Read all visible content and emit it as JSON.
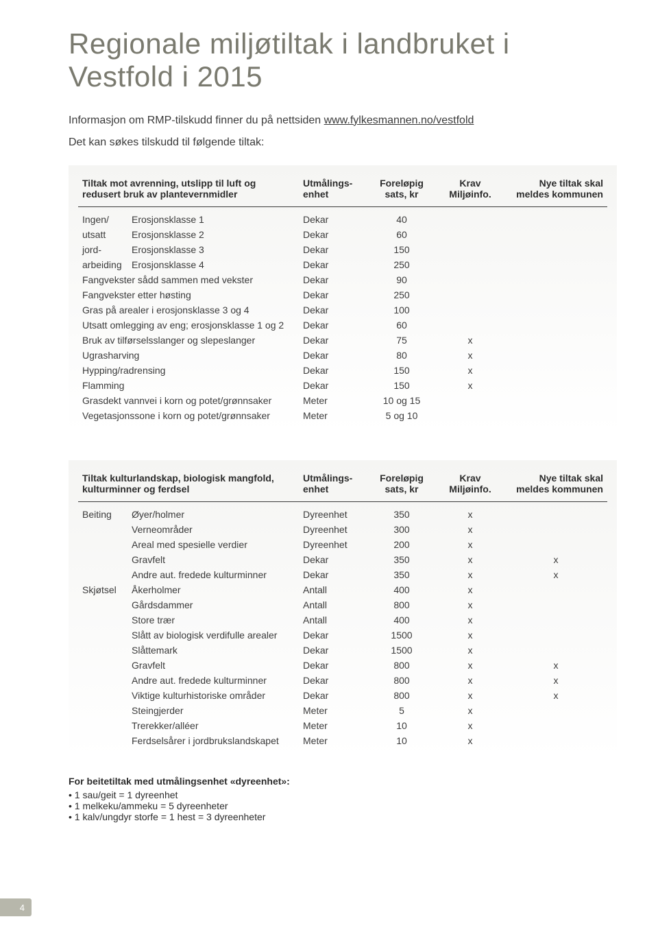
{
  "title": "Regionale miljøtiltak i landbruket i Vestfold i 2015",
  "intro_prefix": "Informasjon om RMP-tilskudd finner du på nettsiden ",
  "intro_link": "www.fylkesmannen.no/vestfold",
  "intro2": "Det kan søkes tilskudd til følgende tiltak:",
  "headers": {
    "unit": "Utmålings-\nenhet",
    "rate": "Foreløpig\nsats, kr",
    "krav": "Krav\nMiljøinfo.",
    "meld": "Nye tiltak skal\nmeldes kommunen"
  },
  "table1": {
    "heading": "Tiltak mot avrenning, utslipp til luft og redusert bruk av plantevernmidler",
    "cat_label": "Ingen/ utsatt jord- arbeiding",
    "rows": [
      {
        "cat": "Ingen/",
        "desc": "Erosjonsklasse 1",
        "unit": "Dekar",
        "rate": "40",
        "krav": "",
        "meld": ""
      },
      {
        "cat": "utsatt",
        "desc": "Erosjonsklasse 2",
        "unit": "Dekar",
        "rate": "60",
        "krav": "",
        "meld": ""
      },
      {
        "cat": "jord-",
        "desc": "Erosjonsklasse 3",
        "unit": "Dekar",
        "rate": "150",
        "krav": "",
        "meld": ""
      },
      {
        "cat": "arbeiding",
        "desc": "Erosjonsklasse 4",
        "unit": "Dekar",
        "rate": "250",
        "krav": "",
        "meld": ""
      },
      {
        "cat": "",
        "desc": "Fangvekster sådd sammen med vekster",
        "unit": "Dekar",
        "rate": "90",
        "krav": "",
        "meld": ""
      },
      {
        "cat": "",
        "desc": "Fangvekster etter høsting",
        "unit": "Dekar",
        "rate": "250",
        "krav": "",
        "meld": ""
      },
      {
        "cat": "",
        "desc": "Gras på arealer i erosjonsklasse 3 og 4",
        "unit": "Dekar",
        "rate": "100",
        "krav": "",
        "meld": ""
      },
      {
        "cat": "",
        "desc": "Utsatt omlegging av eng; erosjonsklasse 1 og 2",
        "unit": "Dekar",
        "rate": "60",
        "krav": "",
        "meld": ""
      },
      {
        "cat": "",
        "desc": "Bruk av tilførselsslanger og slepeslanger",
        "unit": "Dekar",
        "rate": "75",
        "krav": "x",
        "meld": ""
      },
      {
        "cat": "",
        "desc": "Ugrasharving",
        "unit": "Dekar",
        "rate": "80",
        "krav": "x",
        "meld": ""
      },
      {
        "cat": "",
        "desc": "Hypping/radrensing",
        "unit": "Dekar",
        "rate": "150",
        "krav": "x",
        "meld": ""
      },
      {
        "cat": "",
        "desc": "Flamming",
        "unit": "Dekar",
        "rate": "150",
        "krav": "x",
        "meld": ""
      },
      {
        "cat": "",
        "desc": "Grasdekt vannvei i korn og potet/grønnsaker",
        "unit": "Meter",
        "rate": "10 og 15",
        "krav": "",
        "meld": ""
      },
      {
        "cat": "",
        "desc": "Vegetasjonssone i korn og potet/grønnsaker",
        "unit": "Meter",
        "rate": "5 og 10",
        "krav": "",
        "meld": ""
      }
    ]
  },
  "table2": {
    "heading": "Tiltak kulturlandskap, biologisk mangfold, kulturminner og ferdsel",
    "rows": [
      {
        "cat": "Beiting",
        "desc": "Øyer/holmer",
        "unit": "Dyreenhet",
        "rate": "350",
        "krav": "x",
        "meld": ""
      },
      {
        "cat": "",
        "desc": "Verneområder",
        "unit": "Dyreenhet",
        "rate": "300",
        "krav": "x",
        "meld": ""
      },
      {
        "cat": "",
        "desc": "Areal med spesielle verdier",
        "unit": "Dyreenhet",
        "rate": "200",
        "krav": "x",
        "meld": ""
      },
      {
        "cat": "",
        "desc": "Gravfelt",
        "unit": "Dekar",
        "rate": "350",
        "krav": "x",
        "meld": "x"
      },
      {
        "cat": "",
        "desc": "Andre aut. fredede kulturminner",
        "unit": "Dekar",
        "rate": "350",
        "krav": "x",
        "meld": "x"
      },
      {
        "cat": "Skjøtsel",
        "desc": "Åkerholmer",
        "unit": "Antall",
        "rate": "400",
        "krav": "x",
        "meld": ""
      },
      {
        "cat": "",
        "desc": "Gårdsdammer",
        "unit": "Antall",
        "rate": "800",
        "krav": "x",
        "meld": ""
      },
      {
        "cat": "",
        "desc": "Store trær",
        "unit": "Antall",
        "rate": "400",
        "krav": "x",
        "meld": ""
      },
      {
        "cat": "",
        "desc": "Slått av biologisk verdifulle arealer",
        "unit": "Dekar",
        "rate": "1500",
        "krav": "x",
        "meld": ""
      },
      {
        "cat": "",
        "desc": "Slåttemark",
        "unit": "Dekar",
        "rate": "1500",
        "krav": "x",
        "meld": ""
      },
      {
        "cat": "",
        "desc": "Gravfelt",
        "unit": "Dekar",
        "rate": "800",
        "krav": "x",
        "meld": "x"
      },
      {
        "cat": "",
        "desc": "Andre aut. fredede kulturminner",
        "unit": "Dekar",
        "rate": "800",
        "krav": "x",
        "meld": "x"
      },
      {
        "cat": "",
        "desc": "Viktige kulturhistoriske områder",
        "unit": "Dekar",
        "rate": "800",
        "krav": "x",
        "meld": "x"
      },
      {
        "cat": "",
        "desc": "Steingjerder",
        "unit": "Meter",
        "rate": "5",
        "krav": "x",
        "meld": ""
      },
      {
        "cat": "",
        "desc": "Trerekker/alléer",
        "unit": "Meter",
        "rate": "10",
        "krav": "x",
        "meld": ""
      },
      {
        "cat": "",
        "desc": "Ferdselsårer i jordbrukslandskapet",
        "unit": "Meter",
        "rate": "10",
        "krav": "x",
        "meld": ""
      }
    ]
  },
  "footnotes": {
    "title": "For beitetiltak med utmålingsenhet «dyreenhet»:",
    "items": [
      "1 sau/geit = 1 dyreenhet",
      "1 melkeku/ammeku = 5 dyreenheter",
      "1 kalv/ungdyr storfe = 1 hest = 3 dyreenheter"
    ]
  },
  "page_number": "4"
}
